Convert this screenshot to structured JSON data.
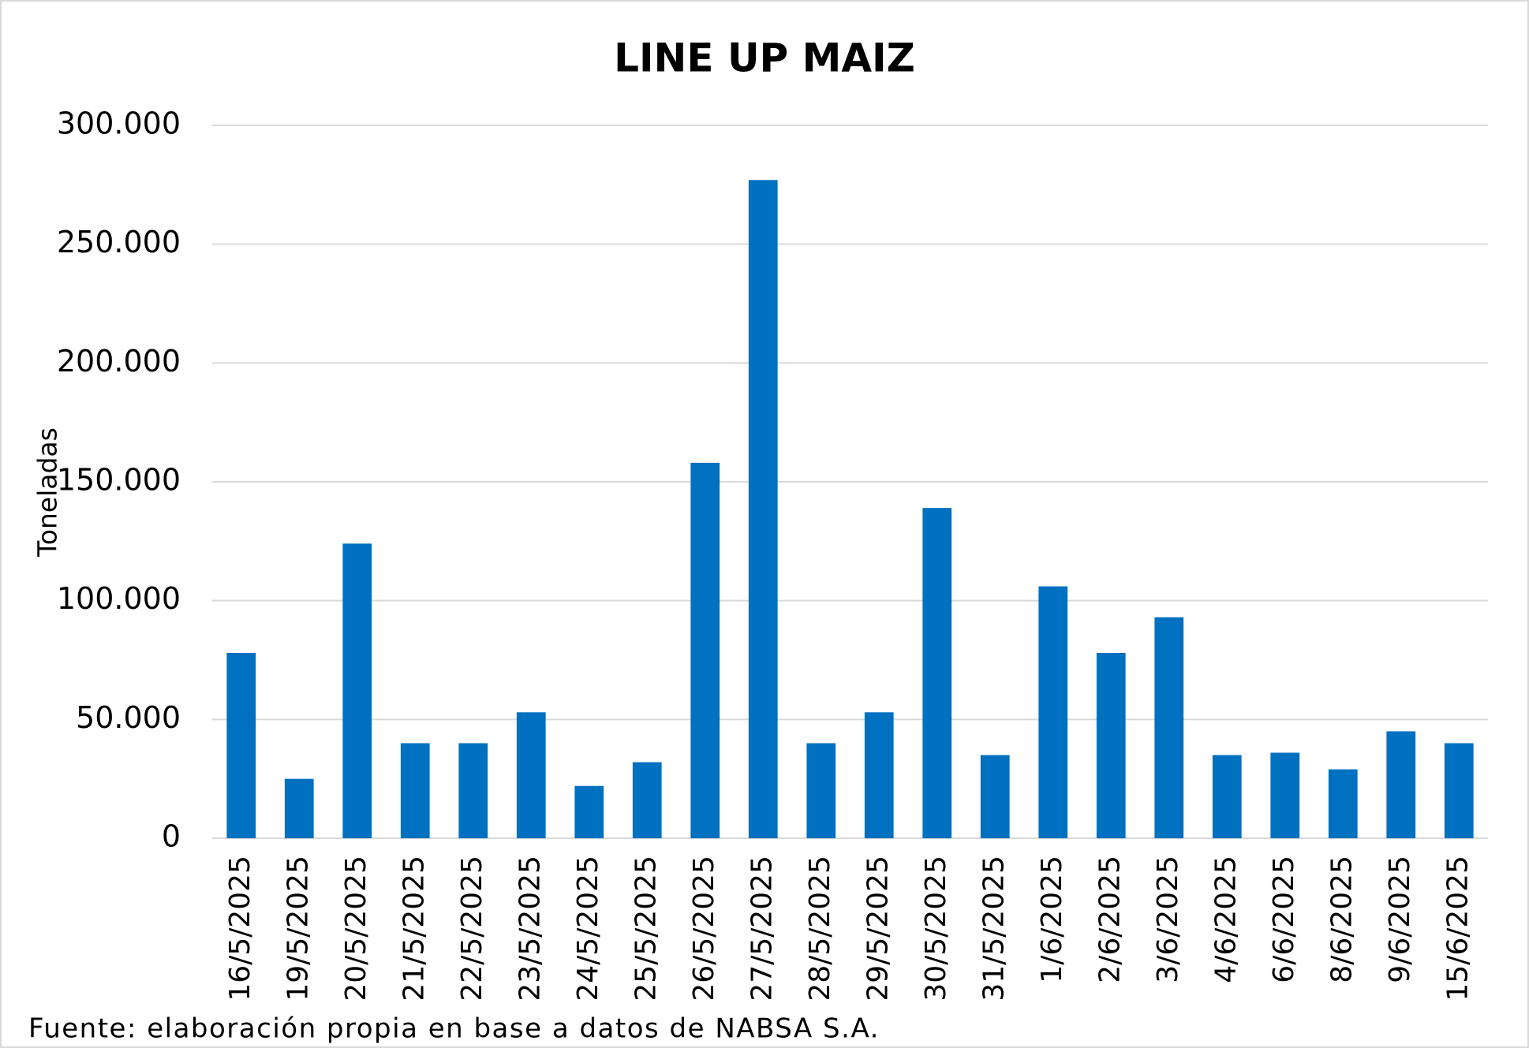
{
  "chart_data": {
    "type": "bar",
    "title": "LINE UP MAIZ",
    "y_label": "Toneladas",
    "source": "Fuente: elaboración propia en base a datos de NABSA S.A.",
    "categories": [
      "16/5/2025",
      "19/5/2025",
      "20/5/2025",
      "21/5/2025",
      "22/5/2025",
      "23/5/2025",
      "24/5/2025",
      "25/5/2025",
      "26/5/2025",
      "27/5/2025",
      "28/5/2025",
      "29/5/2025",
      "30/5/2025",
      "31/5/2025",
      "1/6/2025",
      "2/6/2025",
      "3/6/2025",
      "4/6/2025",
      "6/6/2025",
      "8/6/2025",
      "9/6/2025",
      "15/6/2025"
    ],
    "values": [
      78000,
      25000,
      124000,
      40000,
      40000,
      53000,
      22000,
      32000,
      158000,
      277000,
      40000,
      53000,
      139000,
      35000,
      106000,
      78000,
      93000,
      35000,
      36000,
      29000,
      45000,
      40000
    ],
    "color": "#0070c0",
    "ylim": [
      0,
      300000
    ],
    "yticks": [
      0,
      {
        "value": 50000,
        "label": "50.000"
      },
      {
        "value": 100000,
        "label": "100.000"
      },
      {
        "value": 150000,
        "label": "150.000"
      },
      {
        "value": 200000,
        "label": "200.000"
      },
      {
        "value": 250000,
        "label": "250.000"
      },
      {
        "value": 300000,
        "label": "300.000"
      }
    ],
    "grid": true
  }
}
